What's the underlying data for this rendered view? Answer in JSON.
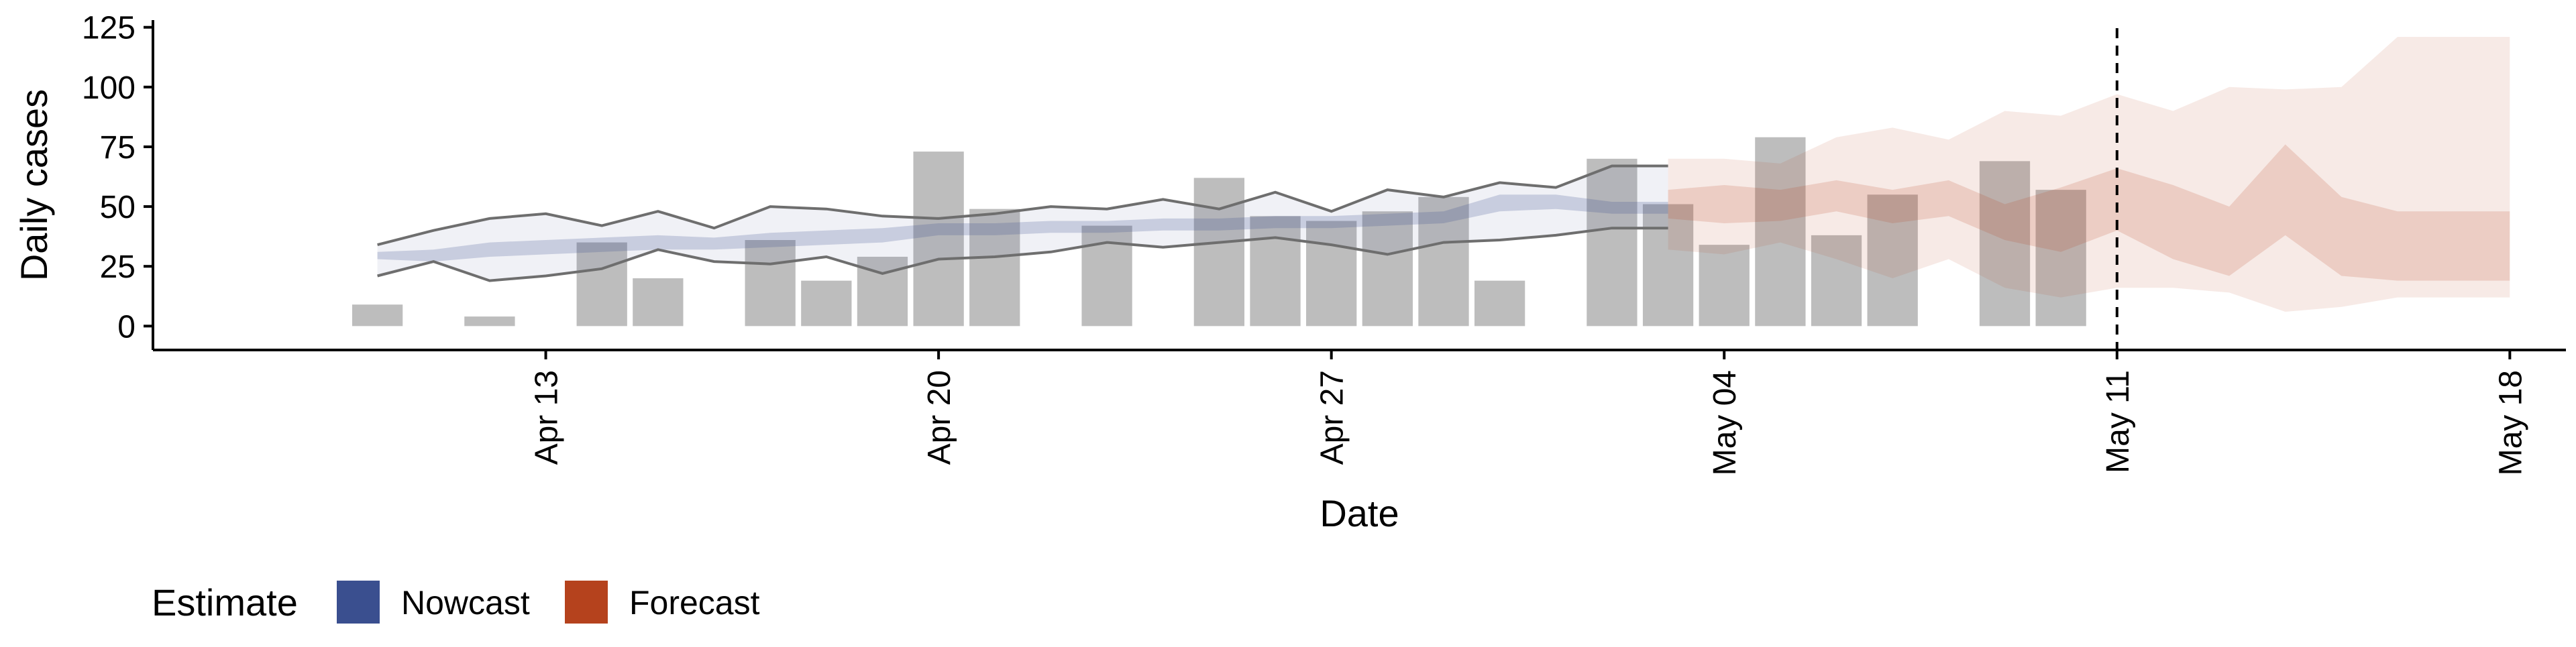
{
  "chart_data": {
    "type": "bar",
    "xlabel": "Date",
    "ylabel": "Daily cases",
    "ylim": [
      -10,
      128
    ],
    "xlim": [
      "2020-04-06",
      "2020-05-19"
    ],
    "y_ticks": [
      0,
      25,
      50,
      75,
      100,
      125
    ],
    "x_ticks": [
      {
        "date": "2020-04-13",
        "label": "Apr 13"
      },
      {
        "date": "2020-04-20",
        "label": "Apr 20"
      },
      {
        "date": "2020-04-27",
        "label": "Apr 27"
      },
      {
        "date": "2020-05-04",
        "label": "May 04"
      },
      {
        "date": "2020-05-11",
        "label": "May 11"
      },
      {
        "date": "2020-05-18",
        "label": "May 18"
      }
    ],
    "grid": false,
    "vline_date": "2020-05-11",
    "bars": {
      "color": "#bdbdbd",
      "points": [
        {
          "date": "2020-04-10",
          "value": 9
        },
        {
          "date": "2020-04-12",
          "value": 4
        },
        {
          "date": "2020-04-14",
          "value": 35
        },
        {
          "date": "2020-04-15",
          "value": 20
        },
        {
          "date": "2020-04-17",
          "value": 36
        },
        {
          "date": "2020-04-18",
          "value": 19
        },
        {
          "date": "2020-04-19",
          "value": 29
        },
        {
          "date": "2020-04-20",
          "value": 73
        },
        {
          "date": "2020-04-21",
          "value": 49
        },
        {
          "date": "2020-04-23",
          "value": 42
        },
        {
          "date": "2020-04-25",
          "value": 62
        },
        {
          "date": "2020-04-26",
          "value": 46
        },
        {
          "date": "2020-04-27",
          "value": 44
        },
        {
          "date": "2020-04-28",
          "value": 48
        },
        {
          "date": "2020-04-29",
          "value": 54
        },
        {
          "date": "2020-04-30",
          "value": 19
        },
        {
          "date": "2020-05-02",
          "value": 70
        },
        {
          "date": "2020-05-03",
          "value": 51
        },
        {
          "date": "2020-05-04",
          "value": 34
        },
        {
          "date": "2020-05-05",
          "value": 79
        },
        {
          "date": "2020-05-06",
          "value": 38
        },
        {
          "date": "2020-05-07",
          "value": 55
        },
        {
          "date": "2020-05-09",
          "value": 69
        },
        {
          "date": "2020-05-10",
          "value": 57
        }
      ]
    },
    "nowcast": {
      "name": "Nowcast",
      "color": "#3a4f8f",
      "dates": [
        "2020-04-10",
        "2020-04-11",
        "2020-04-12",
        "2020-04-13",
        "2020-04-14",
        "2020-04-15",
        "2020-04-16",
        "2020-04-17",
        "2020-04-18",
        "2020-04-19",
        "2020-04-20",
        "2020-04-21",
        "2020-04-22",
        "2020-04-23",
        "2020-04-24",
        "2020-04-25",
        "2020-04-26",
        "2020-04-27",
        "2020-04-28",
        "2020-04-29",
        "2020-04-30",
        "2020-05-01",
        "2020-05-02",
        "2020-05-03"
      ],
      "outer_upper": [
        34,
        40,
        45,
        47,
        42,
        48,
        41,
        50,
        49,
        46,
        45,
        47,
        50,
        49,
        53,
        49,
        56,
        48,
        57,
        54,
        60,
        58,
        67,
        67
      ],
      "outer_lower": [
        21,
        27,
        19,
        21,
        24,
        32,
        27,
        26,
        29,
        22,
        28,
        29,
        31,
        35,
        33,
        35,
        37,
        34,
        30,
        35,
        36,
        38,
        41,
        41
      ],
      "inner_upper": [
        31,
        32,
        35,
        36,
        37,
        38,
        37,
        39,
        40,
        41,
        43,
        43,
        44,
        44,
        45,
        45,
        46,
        46,
        47,
        48,
        55,
        55,
        52,
        52
      ],
      "inner_lower": [
        28,
        27,
        29,
        30,
        31,
        32,
        32,
        33,
        34,
        35,
        38,
        38,
        39,
        39,
        40,
        40,
        41,
        41,
        42,
        43,
        48,
        49,
        47,
        47
      ]
    },
    "forecast": {
      "name": "Forecast",
      "color": "#b5421d",
      "dates": [
        "2020-05-03",
        "2020-05-04",
        "2020-05-05",
        "2020-05-06",
        "2020-05-07",
        "2020-05-08",
        "2020-05-09",
        "2020-05-10",
        "2020-05-11",
        "2020-05-12",
        "2020-05-13",
        "2020-05-14",
        "2020-05-15",
        "2020-05-16",
        "2020-05-17",
        "2020-05-18"
      ],
      "outer_upper": [
        70,
        70,
        68,
        79,
        83,
        78,
        90,
        88,
        97,
        90,
        100,
        99,
        100,
        121,
        121,
        121
      ],
      "outer_lower": [
        32,
        30,
        35,
        28,
        20,
        28,
        16,
        12,
        16,
        16,
        14,
        6,
        8,
        12,
        12,
        12
      ],
      "inner_upper": [
        57,
        59,
        57,
        61,
        57,
        61,
        51,
        58,
        66,
        59,
        50,
        76,
        54,
        48,
        48,
        48
      ],
      "inner_lower": [
        45,
        43,
        44,
        48,
        43,
        46,
        36,
        31,
        40,
        28,
        21,
        38,
        21,
        19,
        19,
        19
      ]
    },
    "legend": {
      "title": "Estimate",
      "position": "bottom-left",
      "items": [
        {
          "label": "Nowcast",
          "color": "#3a4f8f"
        },
        {
          "label": "Forecast",
          "color": "#b5421d"
        }
      ]
    }
  }
}
